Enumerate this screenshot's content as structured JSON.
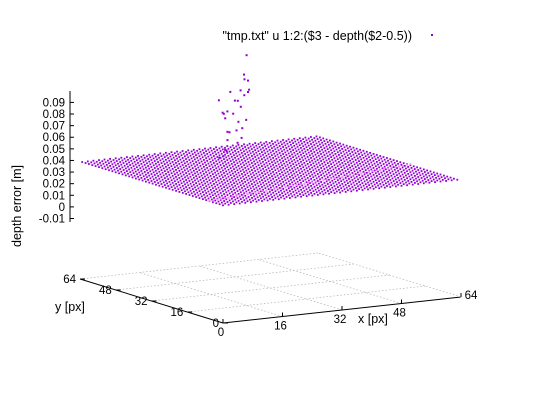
{
  "chart_data": {
    "type": "scatter",
    "plot_style": "3d-splot",
    "legend": {
      "text": "\"tmp.txt\" u 1:2:($3 - depth($2-0.5))",
      "placement": "top-right"
    },
    "xlabel": "x [px]",
    "ylabel": "y [px]",
    "zlabel": "depth error [m]",
    "xlim": [
      0,
      64
    ],
    "ylim": [
      0,
      64
    ],
    "zlim": [
      -0.015,
      0.09
    ],
    "xticks": [
      "0",
      "16",
      "32",
      "48",
      "64"
    ],
    "yticks": [
      "0",
      "16",
      "32",
      "48",
      "64"
    ],
    "zticks": [
      "0.09",
      "0.08",
      "0.07",
      "0.06",
      "0.05",
      "0.04",
      "0.03",
      "0.02",
      "0.01",
      "0",
      "-0.01"
    ],
    "grid": "base plane",
    "colors": {
      "points": "#9400d3",
      "highlight": "#ff88ff"
    },
    "series": [
      {
        "description": "flat error surface over full x,y grid",
        "x_range": [
          0,
          64
        ],
        "y_range": [
          0,
          64
        ],
        "step": 1.5,
        "z": -0.0005
      },
      {
        "description": "outlier points above the surface",
        "points": [
          [
            22.4,
            37.1,
            0.012
          ],
          [
            23.9,
            41.4,
            0.0075
          ],
          [
            24.7,
            39.4,
            0.014
          ],
          [
            26.1,
            42.5,
            0.013
          ],
          [
            27.6,
            43.9,
            0.02
          ],
          [
            29.9,
            47.8,
            0.024
          ],
          [
            31.5,
            49.5,
            0.022
          ],
          [
            32.1,
            46.9,
            0.0143
          ],
          [
            33.7,
            55.1,
            0.03
          ],
          [
            35.6,
            53.2,
            0.02
          ],
          [
            36.3,
            52.1,
            0.014
          ],
          [
            39.5,
            57.1,
            0.0183
          ],
          [
            39.6,
            59.3,
            0.0405
          ],
          [
            42.8,
            61.7,
            0.0428
          ],
          [
            45.0,
            63.7,
            0.0436
          ],
          [
            46.0,
            64.9,
            0.0445
          ],
          [
            45.0,
            65.5,
            0.0575
          ],
          [
            28.9,
            48.3,
            0.0405
          ],
          [
            29.6,
            51.1,
            0.0493
          ],
          [
            31.1,
            51.4,
            0.037
          ],
          [
            34.1,
            54.8,
            0.036
          ],
          [
            37.3,
            57.5,
            0.0313
          ],
          [
            38.7,
            57.5,
            0.0238
          ],
          [
            42.1,
            62.1,
            0.0328
          ],
          [
            42.6,
            60.5,
            0.0223
          ],
          [
            35.6,
            56.0,
            0.0515
          ],
          [
            41.9,
            60.1,
            0.0578
          ],
          [
            36.9,
            56.1,
            0.0435
          ],
          [
            40.3,
            59.2,
            0.0493
          ],
          [
            44.4,
            62.7,
            0.0542
          ],
          [
            46.9,
            67.5,
            0.0724
          ]
        ]
      }
    ]
  }
}
